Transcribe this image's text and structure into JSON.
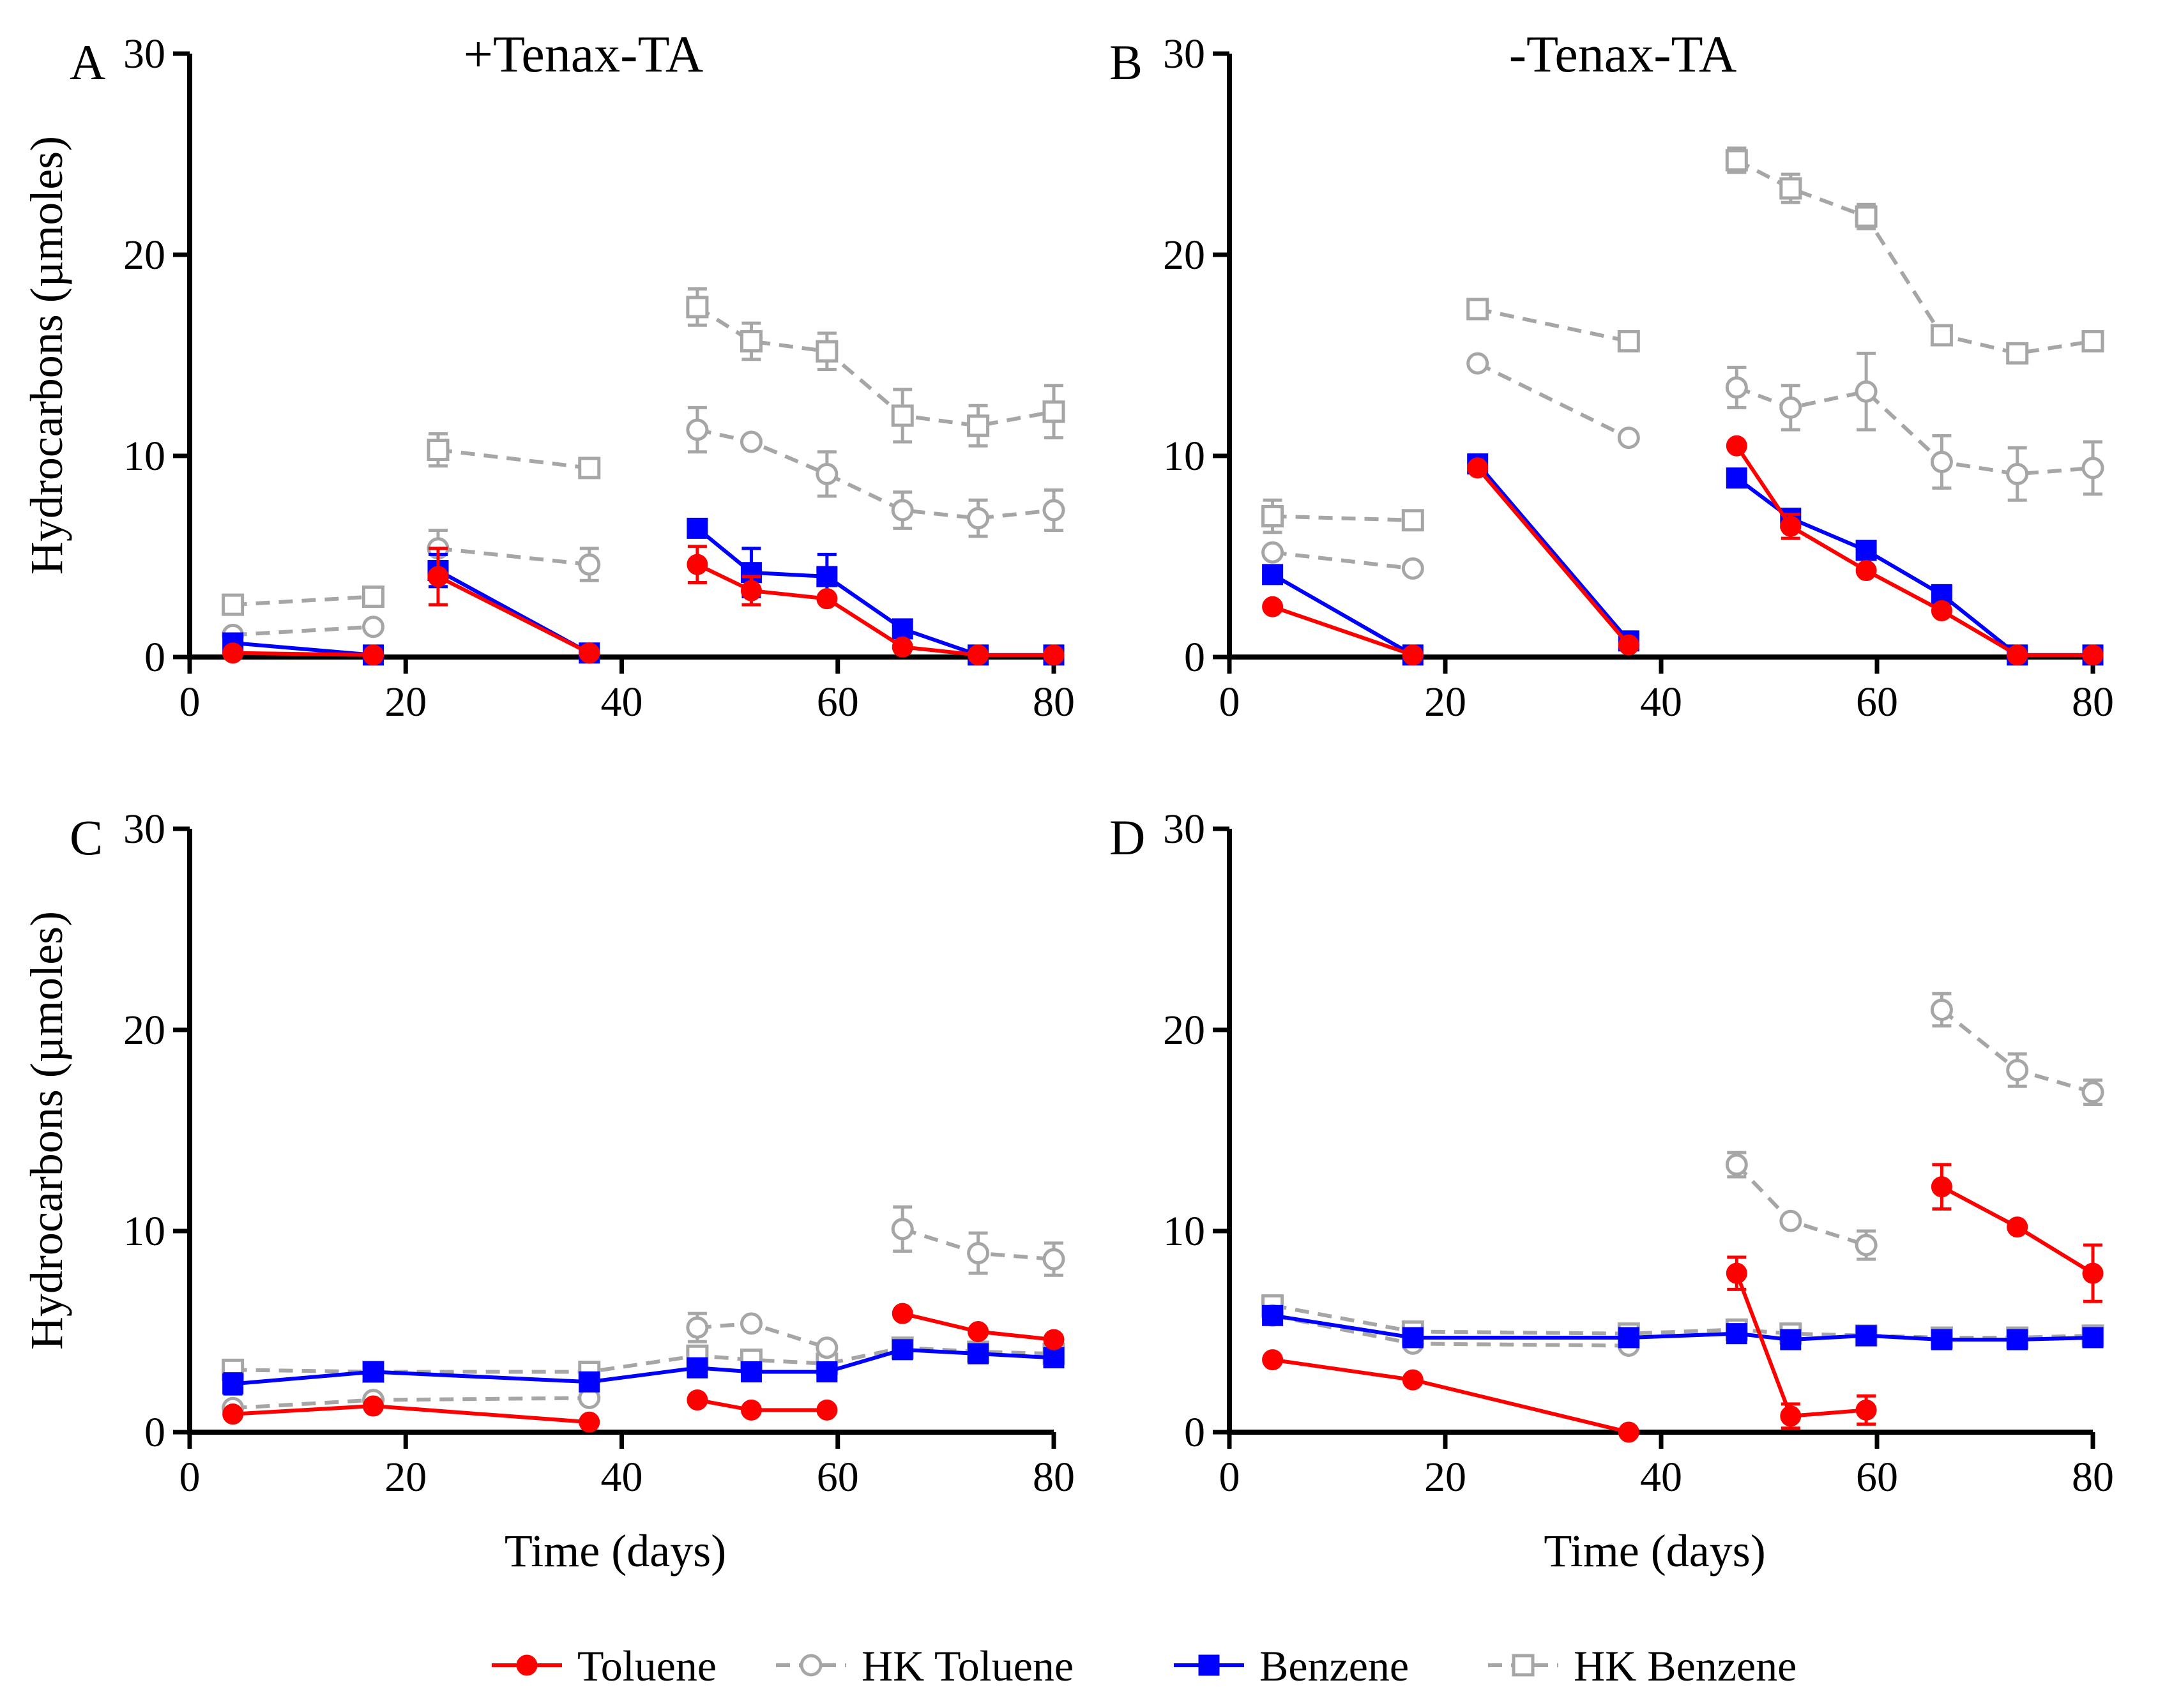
{
  "figure": {
    "legend": [
      {
        "key": "toluene",
        "label": "Toluene"
      },
      {
        "key": "hk_toluene",
        "label": "HK Toluene"
      },
      {
        "key": "benzene",
        "label": "Benzene"
      },
      {
        "key": "hk_benzene",
        "label": "HK Benzene"
      }
    ],
    "series_styles": {
      "toluene": {
        "color": "#ff0000",
        "marker": "filled-circle",
        "line": "solid"
      },
      "hk_toluene": {
        "color": "#a6a6a6",
        "marker": "open-circle",
        "line": "dashed"
      },
      "benzene": {
        "color": "#0000ff",
        "marker": "filled-square",
        "line": "solid"
      },
      "hk_benzene": {
        "color": "#a6a6a6",
        "marker": "open-square",
        "line": "dashed"
      }
    }
  },
  "chart_data": [
    {
      "type": "line",
      "panel": "A",
      "title": "+Tenax-TA",
      "xlabel": "",
      "ylabel": "Hydrocarbons (µmoles)",
      "xlim": [
        0,
        80
      ],
      "ylim": [
        0,
        30
      ],
      "xticks": [
        0,
        20,
        40,
        60,
        80
      ],
      "yticks": [
        0,
        10,
        20,
        30
      ],
      "series": [
        {
          "name": "Toluene",
          "key": "toluene",
          "segments": [
            [
              {
                "x": 4,
                "y": 0.2
              },
              {
                "x": 17,
                "y": 0.1
              }
            ],
            [
              {
                "x": 23,
                "y": 4.0,
                "err": 1.4
              },
              {
                "x": 37,
                "y": 0.2
              }
            ],
            [
              {
                "x": 47,
                "y": 4.6,
                "err": 0.9
              },
              {
                "x": 52,
                "y": 3.3,
                "err": 0.7
              },
              {
                "x": 59,
                "y": 2.9
              },
              {
                "x": 66,
                "y": 0.5
              },
              {
                "x": 73,
                "y": 0.1
              },
              {
                "x": 80,
                "y": 0.1
              }
            ]
          ]
        },
        {
          "name": "HK Toluene",
          "key": "hk_toluene",
          "segments": [
            [
              {
                "x": 4,
                "y": 1.1
              },
              {
                "x": 17,
                "y": 1.5
              }
            ],
            [
              {
                "x": 23,
                "y": 5.4,
                "err": 0.9
              },
              {
                "x": 37,
                "y": 4.6,
                "err": 0.8
              }
            ],
            [
              {
                "x": 47,
                "y": 11.3,
                "err": 1.1
              },
              {
                "x": 52,
                "y": 10.7
              },
              {
                "x": 59,
                "y": 9.1,
                "err": 1.1
              },
              {
                "x": 66,
                "y": 7.3,
                "err": 0.9
              },
              {
                "x": 73,
                "y": 6.9,
                "err": 0.9
              },
              {
                "x": 80,
                "y": 7.3,
                "err": 1.0
              }
            ]
          ]
        },
        {
          "name": "Benzene",
          "key": "benzene",
          "segments": [
            [
              {
                "x": 4,
                "y": 0.7
              },
              {
                "x": 17,
                "y": 0.1
              }
            ],
            [
              {
                "x": 23,
                "y": 4.3,
                "err": 0.8
              },
              {
                "x": 37,
                "y": 0.2
              }
            ],
            [
              {
                "x": 47,
                "y": 6.4
              },
              {
                "x": 52,
                "y": 4.2,
                "err": 1.2
              },
              {
                "x": 59,
                "y": 4.0,
                "err": 1.1
              },
              {
                "x": 66,
                "y": 1.4
              },
              {
                "x": 73,
                "y": 0.1
              },
              {
                "x": 80,
                "y": 0.1
              }
            ]
          ]
        },
        {
          "name": "HK Benzene",
          "key": "hk_benzene",
          "segments": [
            [
              {
                "x": 4,
                "y": 2.6
              },
              {
                "x": 17,
                "y": 3.0
              }
            ],
            [
              {
                "x": 23,
                "y": 10.3,
                "err": 0.8
              },
              {
                "x": 37,
                "y": 9.4
              }
            ],
            [
              {
                "x": 47,
                "y": 17.4,
                "err": 0.9
              },
              {
                "x": 52,
                "y": 15.7,
                "err": 0.9
              },
              {
                "x": 59,
                "y": 15.2,
                "err": 0.9
              },
              {
                "x": 66,
                "y": 12.0,
                "err": 1.3
              },
              {
                "x": 73,
                "y": 11.5,
                "err": 1.0
              },
              {
                "x": 80,
                "y": 12.2,
                "err": 1.3
              }
            ]
          ]
        }
      ]
    },
    {
      "type": "line",
      "panel": "B",
      "title": "-Tenax-TA",
      "xlabel": "",
      "ylabel": "",
      "xlim": [
        0,
        80
      ],
      "ylim": [
        0,
        30
      ],
      "xticks": [
        0,
        20,
        40,
        60,
        80
      ],
      "yticks": [
        0,
        10,
        20,
        30
      ],
      "series": [
        {
          "name": "Toluene",
          "key": "toluene",
          "segments": [
            [
              {
                "x": 4,
                "y": 2.5
              },
              {
                "x": 17,
                "y": 0.1
              }
            ],
            [
              {
                "x": 23,
                "y": 9.4
              },
              {
                "x": 37,
                "y": 0.6
              }
            ],
            [
              {
                "x": 47,
                "y": 10.5
              },
              {
                "x": 52,
                "y": 6.5,
                "err": 0.6
              },
              {
                "x": 59,
                "y": 4.3
              },
              {
                "x": 66,
                "y": 2.3
              },
              {
                "x": 73,
                "y": 0.1
              },
              {
                "x": 80,
                "y": 0.1
              }
            ]
          ]
        },
        {
          "name": "HK Toluene",
          "key": "hk_toluene",
          "segments": [
            [
              {
                "x": 4,
                "y": 5.2
              },
              {
                "x": 17,
                "y": 4.4
              }
            ],
            [
              {
                "x": 23,
                "y": 14.6
              },
              {
                "x": 37,
                "y": 10.9
              }
            ],
            [
              {
                "x": 47,
                "y": 13.4,
                "err": 1.0
              },
              {
                "x": 52,
                "y": 12.4,
                "err": 1.1
              },
              {
                "x": 59,
                "y": 13.2,
                "err": 1.9
              },
              {
                "x": 66,
                "y": 9.7,
                "err": 1.3
              },
              {
                "x": 73,
                "y": 9.1,
                "err": 1.3
              },
              {
                "x": 80,
                "y": 9.4,
                "err": 1.3
              }
            ]
          ]
        },
        {
          "name": "Benzene",
          "key": "benzene",
          "segments": [
            [
              {
                "x": 4,
                "y": 4.1
              },
              {
                "x": 17,
                "y": 0.1
              }
            ],
            [
              {
                "x": 23,
                "y": 9.6
              },
              {
                "x": 37,
                "y": 0.8
              }
            ],
            [
              {
                "x": 47,
                "y": 8.9
              },
              {
                "x": 52,
                "y": 6.9
              },
              {
                "x": 59,
                "y": 5.3
              },
              {
                "x": 66,
                "y": 3.1
              },
              {
                "x": 73,
                "y": 0.1
              },
              {
                "x": 80,
                "y": 0.1
              }
            ]
          ]
        },
        {
          "name": "HK Benzene",
          "key": "hk_benzene",
          "segments": [
            [
              {
                "x": 4,
                "y": 7.0,
                "err": 0.8
              },
              {
                "x": 17,
                "y": 6.8
              }
            ],
            [
              {
                "x": 23,
                "y": 17.3
              },
              {
                "x": 37,
                "y": 15.7
              }
            ],
            [
              {
                "x": 47,
                "y": 24.7,
                "err": 0.6
              },
              {
                "x": 52,
                "y": 23.3,
                "err": 0.7
              },
              {
                "x": 59,
                "y": 21.9,
                "err": 0.6
              },
              {
                "x": 66,
                "y": 16.0
              },
              {
                "x": 73,
                "y": 15.1
              },
              {
                "x": 80,
                "y": 15.7
              }
            ]
          ]
        }
      ]
    },
    {
      "type": "line",
      "panel": "C",
      "title": "",
      "xlabel": "Time (days)",
      "ylabel": "Hydrocarbons (µmoles)",
      "xlim": [
        0,
        80
      ],
      "ylim": [
        0,
        30
      ],
      "xticks": [
        0,
        20,
        40,
        60,
        80
      ],
      "yticks": [
        0,
        10,
        20,
        30
      ],
      "series": [
        {
          "name": "Toluene",
          "key": "toluene",
          "segments": [
            [
              {
                "x": 4,
                "y": 0.9
              },
              {
                "x": 17,
                "y": 1.3
              },
              {
                "x": 37,
                "y": 0.5
              }
            ],
            [
              {
                "x": 47,
                "y": 1.6
              },
              {
                "x": 52,
                "y": 1.1
              },
              {
                "x": 59,
                "y": 1.1
              }
            ],
            [
              {
                "x": 66,
                "y": 5.9
              },
              {
                "x": 73,
                "y": 5.0
              },
              {
                "x": 80,
                "y": 4.6
              }
            ]
          ]
        },
        {
          "name": "HK Toluene",
          "key": "hk_toluene",
          "segments": [
            [
              {
                "x": 4,
                "y": 1.2
              },
              {
                "x": 17,
                "y": 1.6
              },
              {
                "x": 37,
                "y": 1.7
              }
            ],
            [
              {
                "x": 47,
                "y": 5.2,
                "err": 0.7
              },
              {
                "x": 52,
                "y": 5.4
              },
              {
                "x": 59,
                "y": 4.2
              }
            ],
            [
              {
                "x": 66,
                "y": 10.1,
                "err": 1.1
              },
              {
                "x": 73,
                "y": 8.9,
                "err": 1.0
              },
              {
                "x": 80,
                "y": 8.6,
                "err": 0.8
              }
            ]
          ]
        },
        {
          "name": "Benzene",
          "key": "benzene",
          "segments": [
            [
              {
                "x": 4,
                "y": 2.4,
                "err": 0.5
              },
              {
                "x": 17,
                "y": 3.0
              },
              {
                "x": 37,
                "y": 2.5
              },
              {
                "x": 47,
                "y": 3.2
              },
              {
                "x": 52,
                "y": 3.0
              },
              {
                "x": 59,
                "y": 3.0
              },
              {
                "x": 66,
                "y": 4.1
              },
              {
                "x": 73,
                "y": 3.9
              },
              {
                "x": 80,
                "y": 3.7
              }
            ]
          ]
        },
        {
          "name": "HK Benzene",
          "key": "hk_benzene",
          "segments": [
            [
              {
                "x": 4,
                "y": 3.1
              },
              {
                "x": 17,
                "y": 3.0
              },
              {
                "x": 37,
                "y": 3.0
              },
              {
                "x": 47,
                "y": 3.8
              },
              {
                "x": 52,
                "y": 3.6
              },
              {
                "x": 59,
                "y": 3.4
              },
              {
                "x": 66,
                "y": 4.2
              },
              {
                "x": 73,
                "y": 4.0
              },
              {
                "x": 80,
                "y": 3.9
              }
            ]
          ]
        }
      ]
    },
    {
      "type": "line",
      "panel": "D",
      "title": "",
      "xlabel": "Time (days)",
      "ylabel": "",
      "xlim": [
        0,
        80
      ],
      "ylim": [
        0,
        30
      ],
      "xticks": [
        0,
        20,
        40,
        60,
        80
      ],
      "yticks": [
        0,
        10,
        20,
        30
      ],
      "series": [
        {
          "name": "Toluene",
          "key": "toluene",
          "segments": [
            [
              {
                "x": 4,
                "y": 3.6
              },
              {
                "x": 17,
                "y": 2.6
              },
              {
                "x": 37,
                "y": 0.0
              }
            ],
            [
              {
                "x": 47,
                "y": 7.9,
                "err": 0.8
              },
              {
                "x": 52,
                "y": 0.8,
                "err": 0.6
              },
              {
                "x": 59,
                "y": 1.1,
                "err": 0.7
              }
            ],
            [
              {
                "x": 66,
                "y": 12.2,
                "err": 1.1
              },
              {
                "x": 73,
                "y": 10.2
              },
              {
                "x": 80,
                "y": 7.9,
                "err": 1.4
              }
            ]
          ]
        },
        {
          "name": "HK Toluene",
          "key": "hk_toluene",
          "segments": [
            [
              {
                "x": 4,
                "y": 5.8
              },
              {
                "x": 17,
                "y": 4.4
              },
              {
                "x": 37,
                "y": 4.3
              }
            ],
            [
              {
                "x": 47,
                "y": 13.3,
                "err": 0.6
              },
              {
                "x": 52,
                "y": 10.5
              },
              {
                "x": 59,
                "y": 9.3,
                "err": 0.7
              }
            ],
            [
              {
                "x": 66,
                "y": 21.0,
                "err": 0.8
              },
              {
                "x": 73,
                "y": 18.0,
                "err": 0.8
              },
              {
                "x": 80,
                "y": 16.9,
                "err": 0.6
              }
            ]
          ]
        },
        {
          "name": "Benzene",
          "key": "benzene",
          "segments": [
            [
              {
                "x": 4,
                "y": 5.8
              },
              {
                "x": 17,
                "y": 4.7
              },
              {
                "x": 37,
                "y": 4.7
              },
              {
                "x": 47,
                "y": 4.9
              },
              {
                "x": 52,
                "y": 4.6
              },
              {
                "x": 59,
                "y": 4.8
              },
              {
                "x": 66,
                "y": 4.6
              },
              {
                "x": 73,
                "y": 4.6
              },
              {
                "x": 80,
                "y": 4.7
              }
            ]
          ]
        },
        {
          "name": "HK Benzene",
          "key": "hk_benzene",
          "segments": [
            [
              {
                "x": 4,
                "y": 6.3
              },
              {
                "x": 17,
                "y": 5.0
              },
              {
                "x": 37,
                "y": 4.9
              },
              {
                "x": 47,
                "y": 5.1
              },
              {
                "x": 52,
                "y": 4.9
              },
              {
                "x": 59,
                "y": 4.8
              },
              {
                "x": 66,
                "y": 4.7
              },
              {
                "x": 73,
                "y": 4.7
              },
              {
                "x": 80,
                "y": 4.8
              }
            ]
          ]
        }
      ]
    }
  ]
}
